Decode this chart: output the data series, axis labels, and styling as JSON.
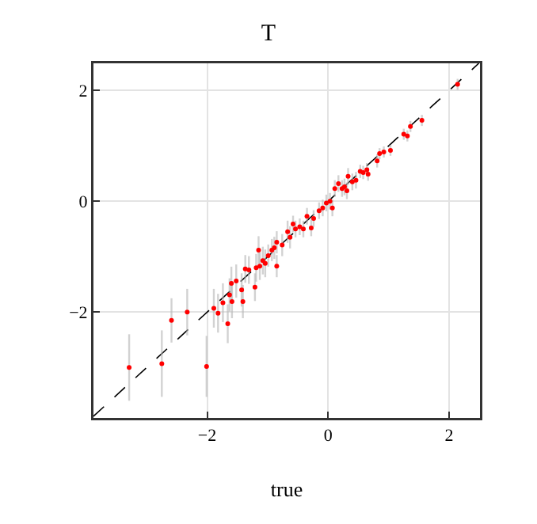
{
  "chart_data": {
    "type": "scatter",
    "title": "T",
    "xlabel": "true",
    "xlim": [
      -3.88,
      2.51
    ],
    "ylim": [
      -3.91,
      2.49
    ],
    "xticks": [
      {
        "value": -2,
        "label": "−2"
      },
      0,
      2
    ],
    "yticks": [
      {
        "value": -2,
        "label": "−2"
      },
      0,
      2
    ],
    "grid": true,
    "series": [
      {
        "marker": "circle",
        "color": "#ff0000",
        "x": [
          -3.29,
          -2.75,
          -2.59,
          -2.33,
          -2.01,
          -1.89,
          -1.82,
          -1.74,
          -1.66,
          -1.63,
          -1.6,
          -1.59,
          -1.52,
          -1.43,
          -1.41,
          -1.37,
          -1.31,
          -1.21,
          -1.19,
          -1.15,
          -1.13,
          -1.08,
          -1.04,
          -0.99,
          -0.93,
          -0.89,
          -0.85,
          -0.85,
          -0.76,
          -0.67,
          -0.63,
          -0.58,
          -0.54,
          -0.47,
          -0.41,
          -0.35,
          -0.28,
          -0.24,
          -0.15,
          -0.09,
          -0.03,
          0.03,
          0.07,
          0.11,
          0.17,
          0.23,
          0.27,
          0.31,
          0.33,
          0.4,
          0.46,
          0.53,
          0.58,
          0.64,
          0.66,
          0.81,
          0.85,
          0.92,
          1.03,
          1.25,
          1.31,
          1.36,
          1.55,
          2.14
        ],
        "values": [
          -3.0,
          -2.93,
          -2.15,
          -2.0,
          -2.98,
          -1.93,
          -2.02,
          -1.83,
          -2.21,
          -1.69,
          -1.48,
          -1.81,
          -1.44,
          -1.6,
          -1.81,
          -1.22,
          -1.24,
          -1.55,
          -1.2,
          -0.88,
          -1.17,
          -1.07,
          -1.12,
          -0.98,
          -0.88,
          -0.84,
          -1.17,
          -0.74,
          -0.79,
          -0.55,
          -0.65,
          -0.41,
          -0.5,
          -0.46,
          -0.5,
          -0.27,
          -0.48,
          -0.31,
          -0.17,
          -0.12,
          -0.03,
          0.0,
          -0.12,
          0.23,
          0.32,
          0.23,
          0.26,
          0.19,
          0.45,
          0.35,
          0.38,
          0.54,
          0.52,
          0.57,
          0.49,
          0.73,
          0.86,
          0.89,
          0.92,
          1.21,
          1.18,
          1.35,
          1.46,
          2.11
        ],
        "errors": [
          0.6,
          0.6,
          0.4,
          0.42,
          0.55,
          0.35,
          0.35,
          0.35,
          0.35,
          0.3,
          0.3,
          0.3,
          0.3,
          0.3,
          0.3,
          0.25,
          0.25,
          0.25,
          0.25,
          0.25,
          0.25,
          0.25,
          0.25,
          0.2,
          0.2,
          0.2,
          0.2,
          0.2,
          0.2,
          0.2,
          0.2,
          0.15,
          0.15,
          0.15,
          0.15,
          0.15,
          0.15,
          0.15,
          0.15,
          0.15,
          0.15,
          0.15,
          0.15,
          0.15,
          0.15,
          0.15,
          0.15,
          0.15,
          0.15,
          0.15,
          0.15,
          0.12,
          0.12,
          0.12,
          0.12,
          0.12,
          0.1,
          0.1,
          0.1,
          0.1,
          0.1,
          0.1,
          0.1,
          0.1
        ]
      },
      {
        "type": "line",
        "color": "#000000",
        "line_style": "dashed",
        "x": [
          -3.88,
          2.49
        ],
        "values": [
          -3.88,
          2.49
        ]
      }
    ]
  }
}
